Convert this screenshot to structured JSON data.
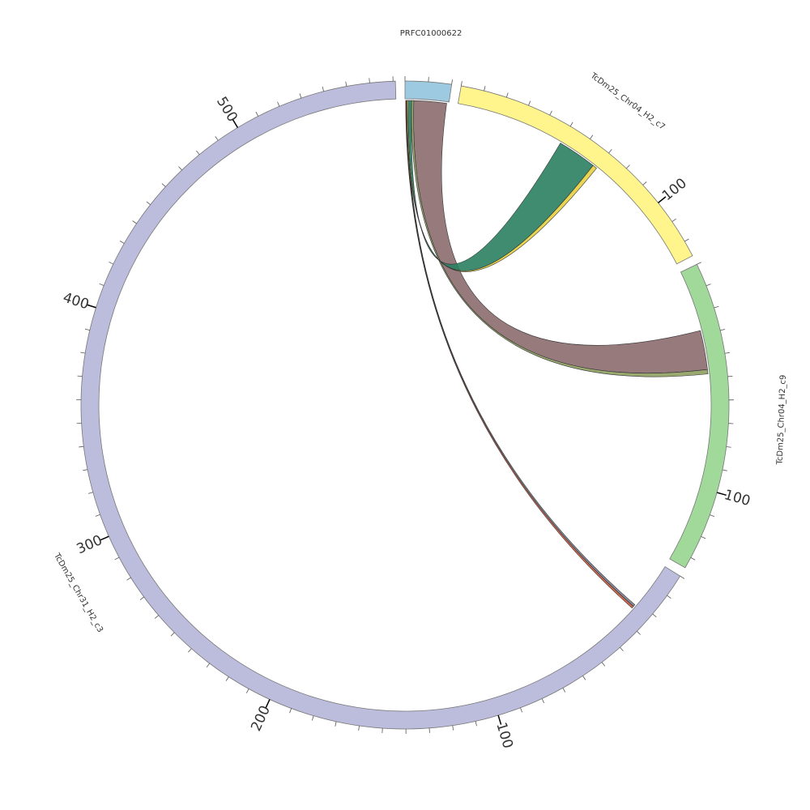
{
  "chart_data": {
    "type": "circos",
    "minor_tick_interval": 10,
    "segments": [
      {
        "name": "PRFC01000622",
        "color": "#9ecae1",
        "length": 20,
        "major_ticks": []
      },
      {
        "name": "TcDm25_Chr04_H2_c7",
        "color": "#fff58c",
        "length": 127,
        "major_ticks": [
          100
        ]
      },
      {
        "name": "TcDm25_Chr04_H2_c9",
        "color": "#a1d99b",
        "length": 135,
        "major_ticks": [
          100
        ]
      },
      {
        "name": "TcDm25_Chr31_H2_c3",
        "color": "#bcbddc",
        "length": 571,
        "major_ticks": [
          100,
          200,
          300,
          400,
          500
        ]
      }
    ],
    "links": [
      {
        "source": 0,
        "source_start": 4,
        "source_end": 19,
        "target": 2,
        "target_start": 28,
        "target_end": 46,
        "color": "#8b6b6e"
      },
      {
        "source": 0,
        "source_start": 3,
        "source_end": 4,
        "target": 2,
        "target_start": 46,
        "target_end": 48,
        "color": "#8fa060"
      },
      {
        "source": 0,
        "source_start": 1.5,
        "source_end": 3,
        "target": 1,
        "target_start": 50,
        "target_end": 68,
        "color": "#2a8062"
      },
      {
        "source": 0,
        "source_start": 1,
        "source_end": 1.5,
        "target": 1,
        "target_start": 68,
        "target_end": 70,
        "color": "#e8d040"
      },
      {
        "source": 0,
        "source_start": 0.7,
        "source_end": 1,
        "target": 3,
        "target_start": 22,
        "target_end": 23,
        "color": "#7a8090"
      },
      {
        "source": 0,
        "source_start": 0.3,
        "source_end": 0.6,
        "target": 3,
        "target_start": 23,
        "target_end": 24,
        "color": "#d05a40"
      }
    ]
  }
}
